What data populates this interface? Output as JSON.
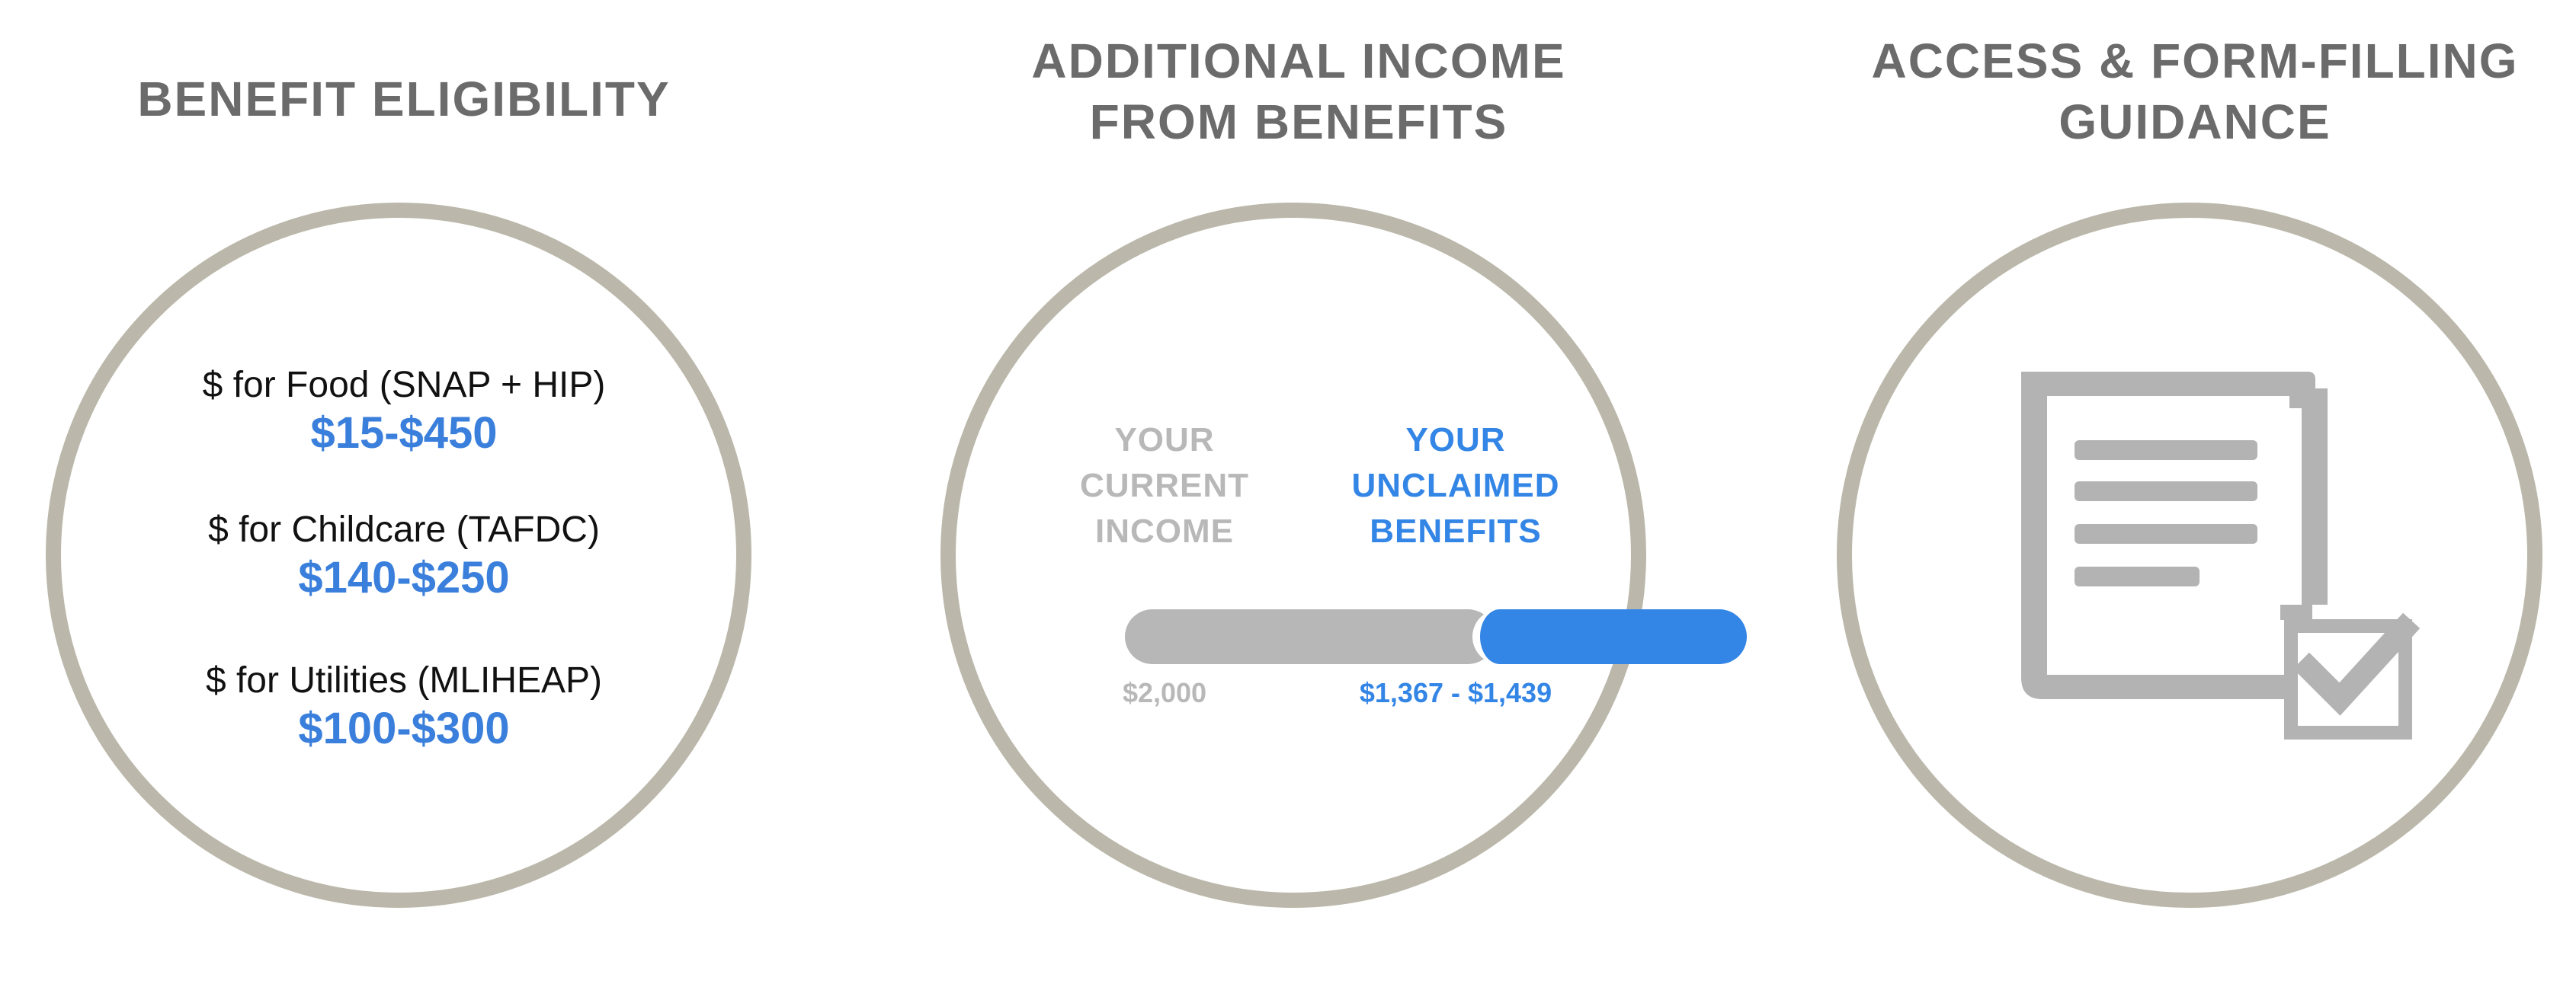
{
  "panels": {
    "eligibility": {
      "title": "BENEFIT ELIGIBILITY",
      "benefits": [
        {
          "label": "$ for Food (SNAP + HIP)",
          "range": "$15-$450"
        },
        {
          "label": "$ for Childcare (TAFDC)",
          "range": "$140-$250"
        },
        {
          "label": "$ for Utilities (MLIHEAP)",
          "range": "$100-$300"
        }
      ]
    },
    "income": {
      "title_lines": [
        "ADDITIONAL INCOME",
        "FROM BENEFITS"
      ],
      "current": {
        "lines": [
          "YOUR",
          "CURRENT",
          "INCOME"
        ],
        "amount": "$2,000"
      },
      "unclaimed": {
        "lines": [
          "YOUR",
          "UNCLAIMED",
          "BENEFITS"
        ],
        "amount": "$1,367 - $1,439"
      }
    },
    "guidance": {
      "title_lines": [
        "ACCESS & FORM-FILLING",
        "GUIDANCE"
      ],
      "icon": "document-checkmark-icon"
    }
  },
  "colors": {
    "title": "#6b6b6b",
    "ring": "#bbb8ab",
    "accent": "#3385e6",
    "muted": "#b7b7b7"
  }
}
